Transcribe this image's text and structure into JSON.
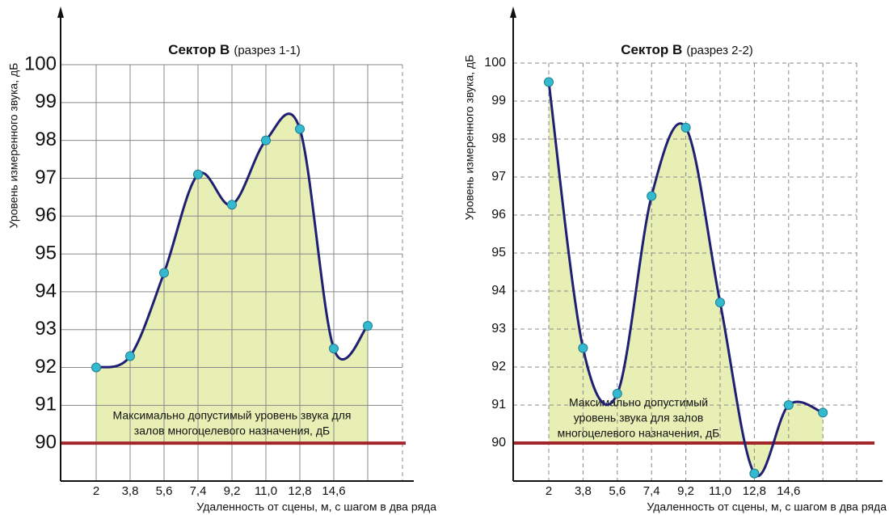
{
  "chart_data": [
    {
      "type": "area-line",
      "title": "Сектор  В",
      "subtitle": "(разрез 1-1)",
      "ylabel": "Уровень измеренного звука, дБ",
      "xlabel": "Удаленность от сцены, м, с шагом в два ряда",
      "categories": [
        "2",
        "3,8",
        "5,6",
        "7,4",
        "9,2",
        "11,0",
        "12,8",
        "14,6",
        null
      ],
      "values": [
        92.0,
        92.3,
        94.5,
        97.1,
        96.3,
        98.0,
        98.3,
        92.5,
        93.1
      ],
      "ylim": [
        89,
        100
      ],
      "yticks": [
        90,
        91,
        92,
        93,
        94,
        95,
        96,
        97,
        98,
        99,
        100
      ],
      "grid": true,
      "grid_style": "solid",
      "threshold": 90,
      "threshold_color": "#a3262b",
      "annotation_lines": [
        "Максимально допустимый уровень звука для",
        "залов многоцелевого назначения, дБ"
      ],
      "line_color": "#1f1f73",
      "fill_color": "#e8efb4",
      "point_color": "#35b9cf"
    },
    {
      "type": "area-line",
      "title": "Сектор  В",
      "subtitle": "(разрез 2-2)",
      "ylabel": "Уровень измеренного звука, дБ",
      "xlabel": "Удаленность от сцены, м, с шагом в два ряда",
      "categories": [
        "2",
        "3,8",
        "5,6",
        "7,4",
        "9,2",
        "11,0",
        "12,8",
        "14,6",
        null
      ],
      "values": [
        99.5,
        92.5,
        91.3,
        96.5,
        98.3,
        93.7,
        89.2,
        91.0,
        90.8
      ],
      "ylim": [
        89,
        100
      ],
      "yticks": [
        90,
        91,
        92,
        93,
        94,
        95,
        96,
        97,
        98,
        99,
        100
      ],
      "grid": true,
      "grid_style": "dashed",
      "threshold": 90,
      "threshold_color": "#a3262b",
      "annotation_lines": [
        "Максимально допустимый",
        "уровень звука для залов",
        "многоцелевого назначения, дБ"
      ],
      "line_color": "#1f1f73",
      "fill_color": "#e8efb4",
      "point_color": "#35b9cf"
    }
  ]
}
